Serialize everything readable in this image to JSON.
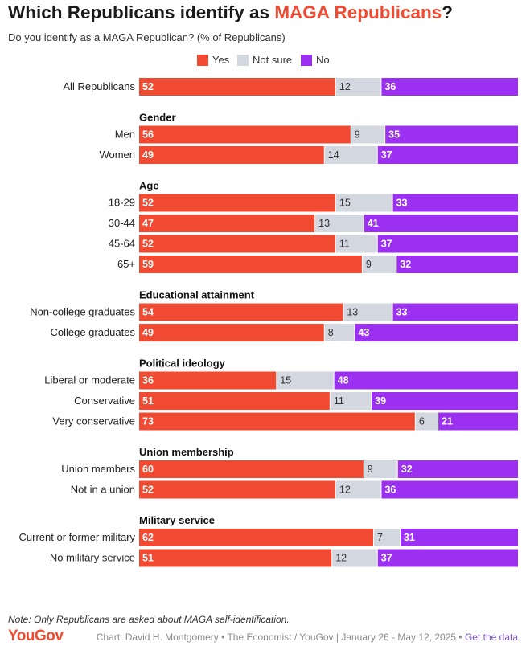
{
  "title": {
    "prefix": "Which Republicans identify as ",
    "highlight": "MAGA Republicans",
    "suffix": "?"
  },
  "subtitle": "Do you identify as a MAGA Republican? (% of Republicans)",
  "colors": {
    "yes": "#f04a32",
    "not_sure": "#d3d7df",
    "no": "#9b30f0",
    "accent": "#f04a32"
  },
  "legend": [
    {
      "key": "yes",
      "label": "Yes"
    },
    {
      "key": "not_sure",
      "label": "Not sure"
    },
    {
      "key": "no",
      "label": "No"
    }
  ],
  "chart_data": {
    "type": "bar",
    "stacked": true,
    "orientation": "horizontal",
    "series": [
      {
        "key": "yes",
        "name": "Yes"
      },
      {
        "key": "not_sure",
        "name": "Not sure"
      },
      {
        "key": "no",
        "name": "No"
      }
    ],
    "groups": [
      {
        "header": "",
        "rows": [
          {
            "label": "All Republicans",
            "values": [
              52,
              12,
              36
            ]
          }
        ]
      },
      {
        "header": "Gender",
        "rows": [
          {
            "label": "Men",
            "values": [
              56,
              9,
              35
            ]
          },
          {
            "label": "Women",
            "values": [
              49,
              14,
              37
            ]
          }
        ]
      },
      {
        "header": "Age",
        "rows": [
          {
            "label": "18-29",
            "values": [
              52,
              15,
              33
            ]
          },
          {
            "label": "30-44",
            "values": [
              47,
              13,
              41
            ]
          },
          {
            "label": "45-64",
            "values": [
              52,
              11,
              37
            ]
          },
          {
            "label": "65+",
            "values": [
              59,
              9,
              32
            ]
          }
        ]
      },
      {
        "header": "Educational attainment",
        "rows": [
          {
            "label": "Non-college graduates",
            "values": [
              54,
              13,
              33
            ]
          },
          {
            "label": "College graduates",
            "values": [
              49,
              8,
              43
            ]
          }
        ]
      },
      {
        "header": "Political ideology",
        "rows": [
          {
            "label": "Liberal or moderate",
            "values": [
              36,
              15,
              48
            ]
          },
          {
            "label": "Conservative",
            "values": [
              51,
              11,
              39
            ]
          },
          {
            "label": "Very conservative",
            "values": [
              73,
              6,
              21
            ]
          }
        ]
      },
      {
        "header": "Union membership",
        "rows": [
          {
            "label": "Union members",
            "values": [
              60,
              9,
              32
            ]
          },
          {
            "label": "Not in a union",
            "values": [
              52,
              12,
              36
            ]
          }
        ]
      },
      {
        "header": "Military service",
        "rows": [
          {
            "label": "Current or former military",
            "values": [
              62,
              7,
              31
            ]
          },
          {
            "label": "No military service",
            "values": [
              51,
              12,
              37
            ]
          }
        ]
      }
    ]
  },
  "note": "Note: Only Republicans are asked about MAGA self-identification.",
  "footer": {
    "logo": "YouGov",
    "credit": "Chart: David H. Montgomery • The Economist / YouGov | January 26 - May 12, 2025 •",
    "link": "Get the data"
  }
}
